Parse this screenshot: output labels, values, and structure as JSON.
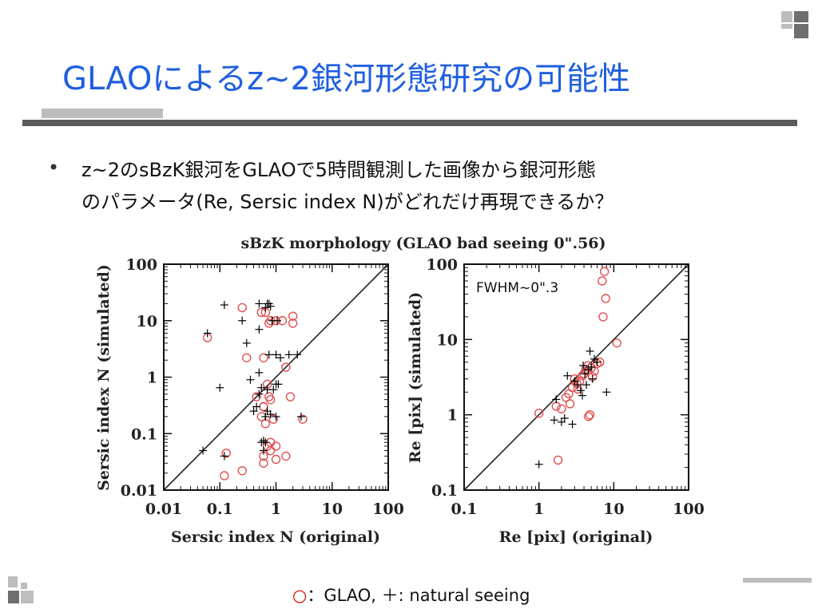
{
  "slide": {
    "title": "GLAOによるz~2銀河形態研究の可能性",
    "bullet_line1": "z~2のsBzK銀河をGLAOで5時間観測した画像から銀河形態",
    "bullet_line2": "のパラメータ(Re, Sersic index N)がどれだけ再現できるか？",
    "legend_circle": "○",
    "legend_text": "：GLAO, ＋: natural seeing"
  },
  "colors": {
    "title": "#1f5fe0",
    "glao_marker": "#e05050",
    "seeing_marker": "#000000"
  },
  "chart_data": [
    {
      "type": "scatter",
      "title": "sBzK morphology (GLAO bad seeing 0\".56)",
      "xlabel": "Sersic index N (original)",
      "ylabel": "Sersic index N (simulated)",
      "xscale": "log",
      "yscale": "log",
      "xlim": [
        0.01,
        100
      ],
      "ylim": [
        0.01,
        100
      ],
      "xticks": [
        "0.01",
        "0.1",
        "1",
        "10",
        "100"
      ],
      "yticks": [
        "0.01",
        "0.1",
        "1",
        "10",
        "100"
      ],
      "reference_line": "y = x",
      "series": [
        {
          "name": "GLAO",
          "marker": "circle",
          "x": [
            0.06,
            0.25,
            0.55,
            0.65,
            0.75,
            0.8,
            1.0,
            1.3,
            2.0,
            2.0,
            0.3,
            0.6,
            0.45,
            0.75,
            1.5,
            0.6,
            0.7,
            0.8,
            1.8,
            0.55,
            0.6,
            0.65,
            0.9,
            3.0,
            0.7,
            0.8,
            0.6,
            1.0,
            1.5,
            0.6,
            0.8,
            1.0,
            0.25,
            0.12,
            0.13
          ],
          "y": [
            5,
            17,
            14,
            14,
            9,
            10,
            10,
            10,
            12,
            9,
            2.2,
            2.2,
            0.45,
            0.45,
            1.5,
            0.3,
            0.75,
            0.4,
            0.45,
            0.2,
            0.3,
            0.15,
            0.18,
            0.18,
            0.06,
            0.07,
            0.04,
            0.06,
            0.04,
            0.03,
            0.05,
            0.035,
            0.022,
            0.018,
            0.045
          ]
        },
        {
          "name": "natural seeing",
          "marker": "plus",
          "x": [
            0.06,
            0.12,
            0.25,
            0.5,
            0.65,
            0.7,
            0.75,
            0.8,
            0.85,
            1.05,
            0.3,
            0.5,
            0.5,
            0.75,
            1.0,
            1.2,
            1.7,
            2.4,
            0.35,
            0.5,
            0.55,
            0.7,
            0.9,
            1.0,
            1.1,
            0.4,
            0.45,
            0.65,
            0.7,
            0.8,
            1.0,
            2.8,
            0.05,
            0.1,
            0.12,
            0.55,
            0.6,
            0.65,
            0.6
          ],
          "y": [
            6,
            19,
            10,
            20,
            17,
            20,
            20,
            18,
            10,
            10,
            4,
            0.5,
            7,
            2.5,
            2.5,
            2.2,
            2.5,
            2.5,
            0.9,
            1.2,
            0.65,
            0.6,
            0.6,
            0.75,
            0.75,
            0.25,
            0.3,
            0.2,
            0.25,
            0.22,
            0.2,
            0.2,
            0.05,
            0.65,
            0.04,
            0.07,
            0.075,
            0.07,
            0.05
          ]
        }
      ]
    },
    {
      "type": "scatter",
      "xlabel": "Re [pix] (original)",
      "ylabel": "Re [pix] (simulated)",
      "xscale": "log",
      "yscale": "log",
      "xlim": [
        0.1,
        100
      ],
      "ylim": [
        0.1,
        100
      ],
      "xticks": [
        "0.1",
        "1",
        "10",
        "100"
      ],
      "yticks": [
        "0.1",
        "1",
        "10",
        "100"
      ],
      "reference_line": "y = x",
      "annotation": "FWHM~0\".3",
      "series": [
        {
          "name": "GLAO",
          "marker": "circle",
          "x": [
            7.5,
            7.0,
            7.8,
            7.2,
            11,
            1.0,
            1.7,
            2.0,
            2.3,
            2.5,
            2.8,
            3.0,
            3.2,
            3.5,
            3.8,
            4.0,
            4.2,
            4.5,
            5.0,
            5.5,
            6.0,
            6.5,
            4.8,
            5.2,
            3.3,
            4.6,
            2.6,
            1.8
          ],
          "y": [
            80,
            60,
            35,
            20,
            9,
            1.05,
            1.3,
            1.2,
            1.7,
            1.9,
            2.3,
            3.0,
            2.6,
            2.8,
            3.3,
            3.5,
            4.0,
            4.5,
            4.2,
            3.8,
            4.8,
            5.0,
            1.0,
            3.2,
            2.2,
            0.95,
            1.4,
            0.25
          ]
        },
        {
          "name": "natural seeing",
          "marker": "plus",
          "x": [
            1.0,
            1.6,
            2.0,
            3.0,
            4.8,
            2.2,
            2.8,
            3.3,
            3.8,
            4.1,
            4.6,
            5.0,
            5.5,
            6.0,
            4.3,
            5.2,
            3.6,
            3.9,
            8.0,
            1.7,
            2.4
          ],
          "y": [
            0.22,
            0.85,
            0.8,
            2.8,
            7.0,
            0.9,
            0.75,
            2.5,
            1.8,
            3.5,
            4.0,
            4.3,
            5.5,
            5.0,
            2.5,
            3.0,
            2.1,
            4.5,
            2.0,
            1.6,
            3.3
          ]
        }
      ]
    }
  ]
}
